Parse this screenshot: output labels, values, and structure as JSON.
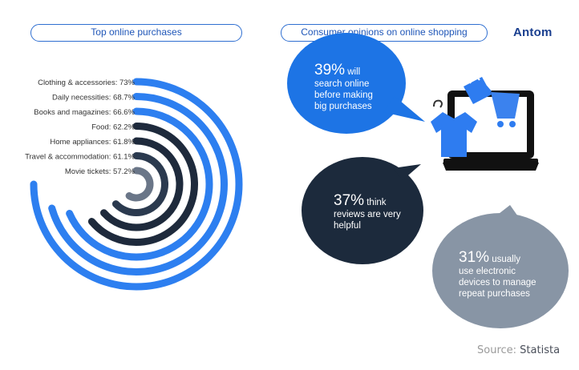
{
  "headers": {
    "left": "Top online purchases",
    "right": "Consumer opinions on online shopping"
  },
  "brand": {
    "logo_text": "Antom",
    "accent_color": "#1f5fd0"
  },
  "source": {
    "prefix": "Source:",
    "name": "Statista"
  },
  "chart_data": {
    "type": "radial-bar",
    "categories": [
      "Clothing & accessories",
      "Daily necessities",
      "Books and magazines",
      "Food",
      "Home appliances",
      "Travel & accommodation",
      "Movie tickets"
    ],
    "values": [
      73,
      68.7,
      66.6,
      62.2,
      61.8,
      61.1,
      57.2
    ],
    "value_labels": [
      "Clothing & accessories: 73%",
      "Daily necessities: 68.7%",
      "Books and magazines: 66.6%",
      "Food: 62.2%",
      "Home appliances: 61.8%",
      "Travel & accommodation: 61.1%",
      "Movie tickets: 57.2%"
    ],
    "unit": "%",
    "colors": [
      "#2d7ff0",
      "#2d7ff0",
      "#2d7ff0",
      "#1e2a3c",
      "#1e2a3c",
      "#2b3a4f",
      "#6a7688"
    ]
  },
  "bubbles": [
    {
      "percent": "39%",
      "rest": [
        "will",
        "search online",
        "before making",
        "big purchases"
      ],
      "color": "#1d74e5"
    },
    {
      "percent": "37%",
      "rest": [
        "think",
        "reviews are very",
        "helpful"
      ],
      "color": "#1c2a3c"
    },
    {
      "percent": "31%",
      "rest": [
        "usually",
        "use electronic",
        "devices to manage",
        "repeat purchases"
      ],
      "color": "#8895a5"
    }
  ],
  "illustration": {
    "icon": "laptop-shopping-icon"
  }
}
